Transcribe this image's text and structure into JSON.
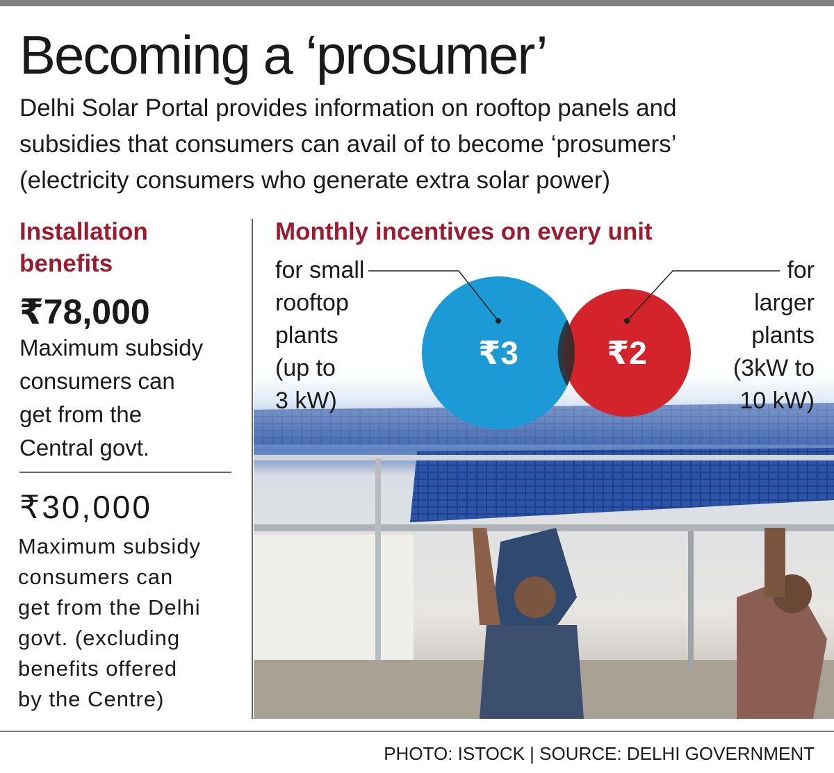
{
  "header": {
    "title": "Becoming a ‘prosumer’",
    "subtitle_lines": [
      "Delhi Solar Portal provides information on rooftop panels and",
      "subsidies that consumers can avail of to become ‘prosumers’",
      "(electricity consumers who generate extra solar power)"
    ]
  },
  "installation": {
    "heading_lines": [
      "Installation",
      "benefits"
    ],
    "central": {
      "amount": "₹78,000",
      "lines": [
        "Maximum subsidy",
        "consumers can",
        "get from the",
        "Central govt."
      ]
    },
    "delhi": {
      "amount": "₹30,000",
      "lines": [
        "Maximum subsidy",
        "consumers can",
        "get from the Delhi",
        "govt. (excluding",
        "benefits offered",
        "by the Centre)"
      ]
    }
  },
  "incentives": {
    "heading": "Monthly incentives on every unit",
    "small": {
      "amount": "₹3",
      "lines": [
        "for small",
        "rooftop",
        "plants",
        "(up to",
        "3 kW)"
      ]
    },
    "large": {
      "amount": "₹2",
      "lines": [
        "for",
        "larger",
        "plants",
        "(3kW to",
        "10 kW)"
      ]
    }
  },
  "footer": {
    "credit": "PHOTO: ISTOCK | SOURCE: DELHI GOVERNMENT"
  }
}
